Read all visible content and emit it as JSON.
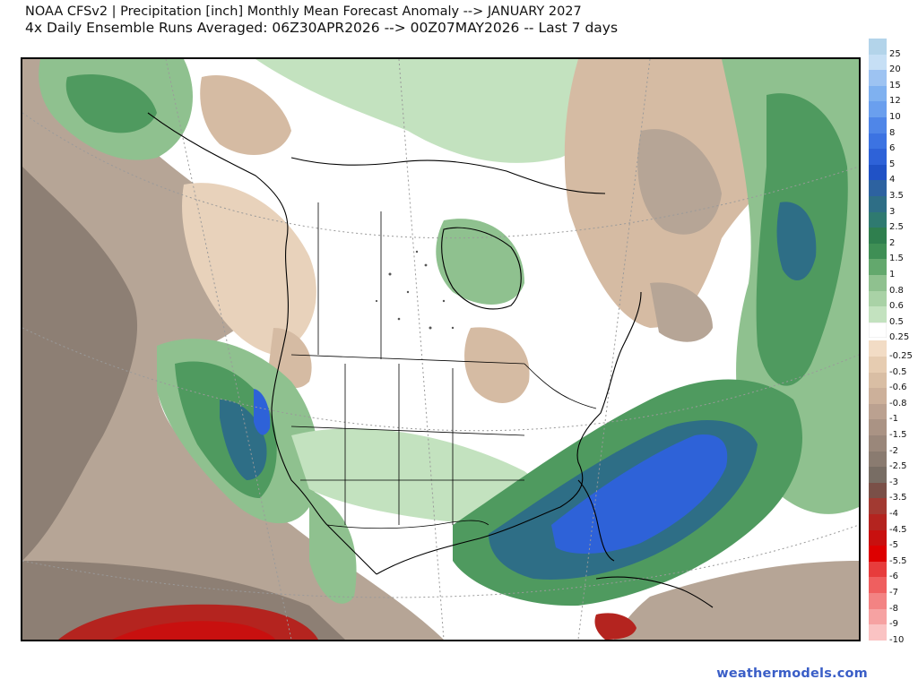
{
  "header": {
    "title_line1": "NOAA CFSv2 | Precipitation [inch] Monthly Mean Forecast Anomaly --> JANUARY 2027",
    "title_line2": "4x Daily Ensemble Runs Averaged: 06Z30APR2026 --> 00Z07MAY2026 -- Last 7 days"
  },
  "footer": {
    "credit": "weathermodels.com"
  },
  "legend": {
    "levels": [
      {
        "label": "25",
        "color": "#b3d4ea"
      },
      {
        "label": "20",
        "color": "#c6dff5"
      },
      {
        "label": "15",
        "color": "#9dc3f2"
      },
      {
        "label": "12",
        "color": "#7fb1f0"
      },
      {
        "label": "10",
        "color": "#6a9fee"
      },
      {
        "label": "8",
        "color": "#4f86e8"
      },
      {
        "label": "6",
        "color": "#3c73e2"
      },
      {
        "label": "5",
        "color": "#2e62d8"
      },
      {
        "label": "4",
        "color": "#2052c6"
      },
      {
        "label": "3.5",
        "color": "#2d62a0"
      },
      {
        "label": "3",
        "color": "#2e6e86"
      },
      {
        "label": "2.5",
        "color": "#2f7a70"
      },
      {
        "label": "2",
        "color": "#2f7f4e"
      },
      {
        "label": "1.5",
        "color": "#3f8f55"
      },
      {
        "label": "1",
        "color": "#63a86d"
      },
      {
        "label": "0.8",
        "color": "#8fc18f"
      },
      {
        "label": "0.6",
        "color": "#a9d2a6"
      },
      {
        "label": "0.5",
        "color": "#c3e2bf"
      },
      {
        "label": "0.25",
        "color": "#ffffff"
      },
      {
        "label": "-0.25",
        "color": "#f2dcc5"
      },
      {
        "label": "-0.5",
        "color": "#e6ccb1"
      },
      {
        "label": "-0.6",
        "color": "#d9bea4"
      },
      {
        "label": "-0.8",
        "color": "#ccb09a"
      },
      {
        "label": "-1",
        "color": "#bba190"
      },
      {
        "label": "-1.5",
        "color": "#aa9384"
      },
      {
        "label": "-2",
        "color": "#9a877a"
      },
      {
        "label": "-2.5",
        "color": "#8a7b70"
      },
      {
        "label": "-3",
        "color": "#786d64"
      },
      {
        "label": "-3.5",
        "color": "#7a5048"
      },
      {
        "label": "-4",
        "color": "#a23a32"
      },
      {
        "label": "-4.5",
        "color": "#b4241f"
      },
      {
        "label": "-5",
        "color": "#c8100f"
      },
      {
        "label": "-5.5",
        "color": "#dd0000"
      },
      {
        "label": "-6",
        "color": "#e73c3c"
      },
      {
        "label": "-7",
        "color": "#ef5f5f"
      },
      {
        "label": "-8",
        "color": "#f38383"
      },
      {
        "label": "-9",
        "color": "#f6a2a2"
      },
      {
        "label": "-10",
        "color": "#fac3c3"
      }
    ]
  },
  "map": {
    "colors": {
      "ocean_brown": "#b6a596",
      "ocean_brown_dark": "#8d7f74",
      "tan_light": "#e8d2bb",
      "tan": "#d5bba3",
      "green_light": "#c3e2bf",
      "green_mid": "#8fc18f",
      "green": "#4f9a5f",
      "green_dark": "#2f7f4e",
      "teal": "#2e6e86",
      "blue": "#2e62d8",
      "red_dark": "#b4241f",
      "red": "#c8100f",
      "coast": "#000000",
      "grid": "#9a9a9a"
    }
  }
}
